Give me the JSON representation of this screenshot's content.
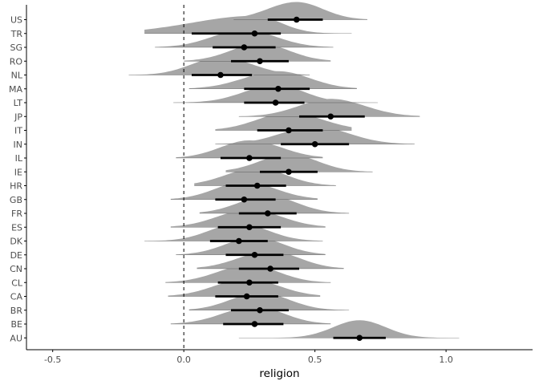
{
  "chart_data": {
    "type": "halfeye",
    "title": "",
    "xlabel": "religion",
    "ylabel": "",
    "xlim": [
      -0.6,
      1.33
    ],
    "x_ticks": [
      -0.5,
      0.0,
      0.5,
      1.0
    ],
    "x_tick_labels": [
      "-0.5",
      "0.0",
      "0.5",
      "1.0"
    ],
    "reference_line": {
      "x": 0,
      "style": "dashed"
    },
    "grid": false,
    "colors": {
      "density": "#a6a6a6",
      "interval": "#000000",
      "point": "#000000",
      "axis": "#000000",
      "tick_text": "#4d4d4d"
    },
    "categories": [
      "US",
      "TR",
      "SG",
      "RO",
      "NL",
      "MA",
      "LT",
      "JP",
      "IT",
      "IN",
      "IL",
      "IE",
      "HR",
      "GB",
      "FR",
      "ES",
      "DK",
      "DE",
      "CN",
      "CL",
      "CA",
      "BR",
      "BE",
      "AU"
    ],
    "series": [
      {
        "label": "US",
        "point": 0.43,
        "ci66": [
          0.32,
          0.53
        ],
        "ci95": [
          0.19,
          0.7
        ]
      },
      {
        "label": "TR",
        "point": 0.27,
        "ci66": [
          0.03,
          0.37
        ],
        "ci95": [
          -0.15,
          0.64
        ]
      },
      {
        "label": "SG",
        "point": 0.23,
        "ci66": [
          0.11,
          0.35
        ],
        "ci95": [
          -0.11,
          0.57
        ]
      },
      {
        "label": "RO",
        "point": 0.29,
        "ci66": [
          0.18,
          0.4
        ],
        "ci95": [
          0.0,
          0.56
        ]
      },
      {
        "label": "NL",
        "point": 0.14,
        "ci66": [
          0.03,
          0.26
        ],
        "ci95": [
          -0.21,
          0.48
        ]
      },
      {
        "label": "MA",
        "point": 0.36,
        "ci66": [
          0.23,
          0.48
        ],
        "ci95": [
          0.02,
          0.66
        ]
      },
      {
        "label": "LT",
        "point": 0.35,
        "ci66": [
          0.23,
          0.46
        ],
        "ci95": [
          -0.04,
          0.74
        ]
      },
      {
        "label": "JP",
        "point": 0.56,
        "ci66": [
          0.44,
          0.69
        ],
        "ci95": [
          0.21,
          0.9
        ]
      },
      {
        "label": "IT",
        "point": 0.4,
        "ci66": [
          0.28,
          0.53
        ],
        "ci95": [
          0.12,
          0.64
        ]
      },
      {
        "label": "IN",
        "point": 0.5,
        "ci66": [
          0.37,
          0.63
        ],
        "ci95": [
          0.12,
          0.88
        ]
      },
      {
        "label": "IL",
        "point": 0.25,
        "ci66": [
          0.14,
          0.37
        ],
        "ci95": [
          -0.03,
          0.53
        ]
      },
      {
        "label": "IE",
        "point": 0.4,
        "ci66": [
          0.29,
          0.51
        ],
        "ci95": [
          0.16,
          0.72
        ]
      },
      {
        "label": "HR",
        "point": 0.28,
        "ci66": [
          0.16,
          0.39
        ],
        "ci95": [
          0.04,
          0.58
        ]
      },
      {
        "label": "GB",
        "point": 0.23,
        "ci66": [
          0.12,
          0.35
        ],
        "ci95": [
          -0.05,
          0.51
        ]
      },
      {
        "label": "FR",
        "point": 0.32,
        "ci66": [
          0.21,
          0.43
        ],
        "ci95": [
          0.06,
          0.63
        ]
      },
      {
        "label": "ES",
        "point": 0.25,
        "ci66": [
          0.13,
          0.37
        ],
        "ci95": [
          -0.05,
          0.54
        ]
      },
      {
        "label": "DK",
        "point": 0.21,
        "ci66": [
          0.1,
          0.32
        ],
        "ci95": [
          -0.15,
          0.53
        ]
      },
      {
        "label": "DE",
        "point": 0.27,
        "ci66": [
          0.16,
          0.38
        ],
        "ci95": [
          -0.03,
          0.54
        ]
      },
      {
        "label": "CN",
        "point": 0.33,
        "ci66": [
          0.21,
          0.44
        ],
        "ci95": [
          0.05,
          0.61
        ]
      },
      {
        "label": "CL",
        "point": 0.25,
        "ci66": [
          0.13,
          0.36
        ],
        "ci95": [
          -0.07,
          0.56
        ]
      },
      {
        "label": "CA",
        "point": 0.24,
        "ci66": [
          0.12,
          0.36
        ],
        "ci95": [
          -0.06,
          0.52
        ]
      },
      {
        "label": "BR",
        "point": 0.29,
        "ci66": [
          0.18,
          0.4
        ],
        "ci95": [
          0.02,
          0.63
        ]
      },
      {
        "label": "BE",
        "point": 0.27,
        "ci66": [
          0.15,
          0.38
        ],
        "ci95": [
          -0.05,
          0.56
        ]
      },
      {
        "label": "AU",
        "point": 0.67,
        "ci66": [
          0.57,
          0.77
        ],
        "ci95": [
          0.21,
          1.05
        ]
      }
    ]
  }
}
